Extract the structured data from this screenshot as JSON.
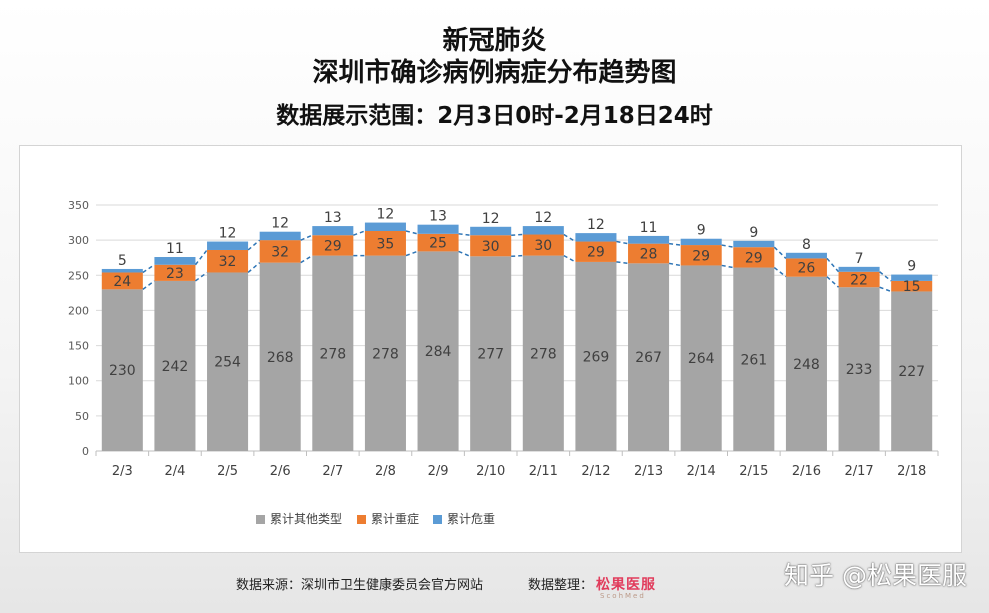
{
  "header": {
    "title_line1": "新冠肺炎",
    "title_line2": "深圳市确诊病例病症分布趋势图",
    "subtitle": "数据展示范围：2月3日0时-2月18日24时"
  },
  "footer": {
    "source": "数据来源：深圳市卫生健康委员会官方网站",
    "arranger_label": "数据整理：",
    "logo_text": "松果医服",
    "logo_subtext": "ScohMed",
    "watermark": "知乎 @松果医服"
  },
  "colors": {
    "other": "#a5a5a5",
    "severe": "#ed7d31",
    "critical": "#5b9bd5",
    "connector": "#2e75b6",
    "grid": "#d9d9d9"
  },
  "chart_data": {
    "type": "bar",
    "stacked": true,
    "categories": [
      "2/3",
      "2/4",
      "2/5",
      "2/6",
      "2/7",
      "2/8",
      "2/9",
      "2/10",
      "2/11",
      "2/12",
      "2/13",
      "2/14",
      "2/15",
      "2/16",
      "2/17",
      "2/18"
    ],
    "series": [
      {
        "name": "累计其他类型",
        "color": "#a5a5a5",
        "values": [
          230,
          242,
          254,
          268,
          278,
          278,
          284,
          277,
          278,
          269,
          267,
          264,
          261,
          248,
          233,
          227
        ]
      },
      {
        "name": "累计重症",
        "color": "#ed7d31",
        "values": [
          24,
          23,
          32,
          32,
          29,
          35,
          25,
          30,
          30,
          29,
          28,
          29,
          29,
          26,
          22,
          15
        ]
      },
      {
        "name": "累计危重",
        "color": "#5b9bd5",
        "values": [
          5,
          11,
          12,
          12,
          13,
          12,
          13,
          12,
          12,
          12,
          11,
          9,
          9,
          8,
          7,
          9
        ]
      }
    ],
    "y_ticks": [
      0,
      50,
      100,
      150,
      200,
      250,
      300,
      350
    ],
    "ylim": [
      0,
      350
    ],
    "grid": true,
    "legend_position": "bottom"
  }
}
